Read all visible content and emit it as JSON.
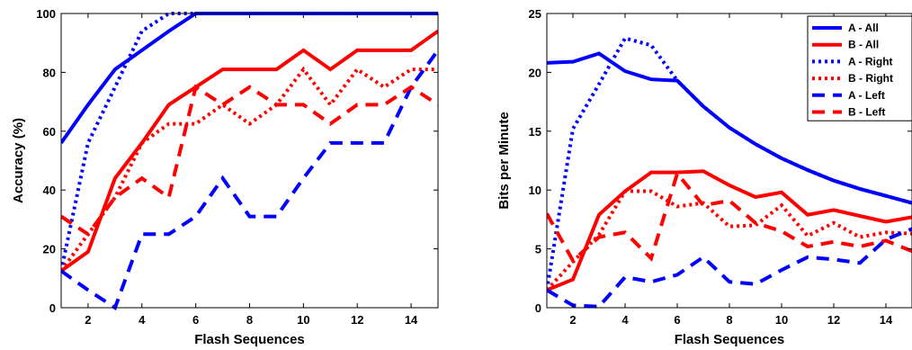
{
  "chart_data": [
    {
      "type": "line",
      "xlabel": "Flash Sequences",
      "ylabel": "Accuracy (%)",
      "xlim": [
        1,
        15
      ],
      "ylim": [
        0,
        100
      ],
      "xticks": [
        2,
        4,
        6,
        8,
        10,
        12,
        14
      ],
      "yticks": [
        0,
        20,
        40,
        60,
        80,
        100
      ],
      "grid": false,
      "legend": null,
      "x": [
        1,
        2,
        3,
        4,
        5,
        6,
        7,
        8,
        9,
        10,
        11,
        12,
        13,
        14,
        15
      ],
      "series": [
        {
          "key": "a_all",
          "values": [
            56,
            69,
            81,
            87.5,
            94,
            100,
            100,
            100,
            100,
            100,
            100,
            100,
            100,
            100,
            100
          ]
        },
        {
          "key": "b_all",
          "values": [
            12.5,
            19,
            44,
            56,
            69,
            75,
            81,
            81,
            81,
            87.5,
            81,
            87.5,
            87.5,
            87.5,
            94
          ]
        },
        {
          "key": "a_right",
          "values": [
            12.5,
            56,
            75,
            94,
            100,
            100,
            100,
            100,
            100,
            100,
            100,
            100,
            100,
            100,
            100
          ]
        },
        {
          "key": "b_right",
          "values": [
            12.5,
            25,
            37.5,
            56,
            62.5,
            62.5,
            69,
            62.5,
            69,
            81,
            69,
            81,
            75,
            81,
            81
          ]
        },
        {
          "key": "a_left",
          "values": [
            12.5,
            6,
            0,
            25,
            25,
            31,
            44,
            31,
            31,
            44,
            56,
            56,
            56,
            75,
            87.5
          ]
        },
        {
          "key": "b_left",
          "values": [
            31,
            25,
            37.5,
            44,
            37.5,
            75,
            69,
            75,
            69,
            69,
            62.5,
            69,
            69,
            75,
            69
          ]
        }
      ]
    },
    {
      "type": "line",
      "xlabel": "Flash Sequences",
      "ylabel": "Bits per Minute",
      "xlim": [
        1,
        15
      ],
      "ylim": [
        0,
        25
      ],
      "xticks": [
        2,
        4,
        6,
        8,
        10,
        12,
        14
      ],
      "yticks": [
        0,
        5,
        10,
        15,
        20,
        25
      ],
      "grid": false,
      "legend": "top-right",
      "x": [
        1,
        2,
        3,
        4,
        5,
        6,
        7,
        8,
        9,
        10,
        11,
        12,
        13,
        14,
        15
      ],
      "series": [
        {
          "key": "a_all",
          "name": "A - All",
          "values": [
            20.8,
            20.9,
            21.6,
            20.1,
            19.4,
            19.3,
            17.1,
            15.3,
            13.9,
            12.7,
            11.7,
            10.8,
            10.1,
            9.5,
            8.9
          ]
        },
        {
          "key": "b_all",
          "name": "B - All",
          "values": [
            1.5,
            2.4,
            7.9,
            9.9,
            11.5,
            11.5,
            11.6,
            10.4,
            9.4,
            9.8,
            7.9,
            8.3,
            7.8,
            7.3,
            7.7
          ]
        },
        {
          "key": "a_right",
          "name": "A - Right",
          "values": [
            1.5,
            15.2,
            19.0,
            22.9,
            22.3,
            19.3,
            17.1,
            15.3,
            13.9,
            12.7,
            11.7,
            10.8,
            10.1,
            9.5,
            8.9
          ]
        },
        {
          "key": "b_right",
          "name": "B - Right",
          "values": [
            1.5,
            3.9,
            6.2,
            9.9,
            9.9,
            8.6,
            8.9,
            6.9,
            7.0,
            8.7,
            6.1,
            7.2,
            6.0,
            6.4,
            6.3
          ]
        },
        {
          "key": "a_left",
          "name": "A - Left",
          "values": [
            1.5,
            0.2,
            0.1,
            2.6,
            2.2,
            2.8,
            4.3,
            2.2,
            2.0,
            3.2,
            4.3,
            4.1,
            3.8,
            5.8,
            6.7
          ]
        },
        {
          "key": "b_left",
          "name": "B - Left",
          "values": [
            8.0,
            4.0,
            6.0,
            6.4,
            4.2,
            11.4,
            8.7,
            9.1,
            7.2,
            6.5,
            5.2,
            5.6,
            5.2,
            5.7,
            4.8
          ]
        }
      ]
    }
  ],
  "series_styles": {
    "a_all": {
      "color": "#0000ff",
      "dash": "solid"
    },
    "b_all": {
      "color": "#ff0000",
      "dash": "solid"
    },
    "a_right": {
      "color": "#0000ff",
      "dash": "dotted"
    },
    "b_right": {
      "color": "#ff0000",
      "dash": "dotted"
    },
    "a_left": {
      "color": "#0000ff",
      "dash": "dashed"
    },
    "b_left": {
      "color": "#ff0000",
      "dash": "dashed"
    }
  }
}
